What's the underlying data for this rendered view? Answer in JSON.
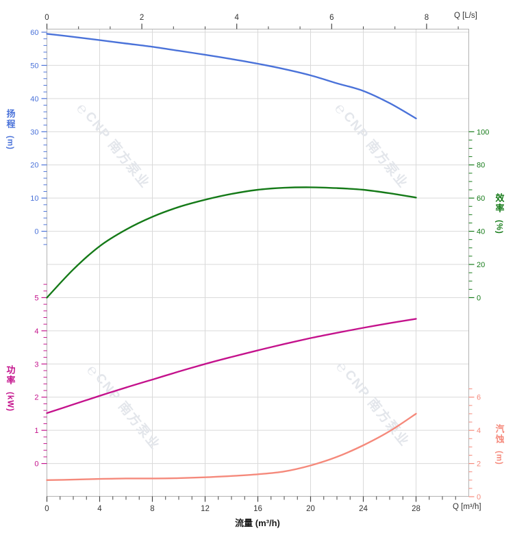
{
  "watermark": {
    "logo": "℮",
    "text": "CNP 南方泵业",
    "color": "#e3e6eb"
  },
  "axes": {
    "top": {
      "title": "Q [L/s]",
      "ticks": [
        0,
        2,
        4,
        6,
        8
      ]
    },
    "bottom": {
      "title": "Q [m³/h]",
      "axis_label": "流量 (m³/h)",
      "ticks": [
        0,
        4,
        8,
        12,
        16,
        20,
        24,
        28
      ]
    },
    "head": {
      "label": "扬程",
      "unit": "(m)",
      "color": "#4a72d9",
      "ticks": [
        60,
        50,
        40,
        30,
        20,
        10,
        0
      ]
    },
    "power": {
      "label": "功率",
      "unit": "(kW)",
      "color": "#c4128c",
      "ticks": [
        5,
        4,
        3,
        2,
        1,
        0
      ]
    },
    "efficiency": {
      "label": "效率",
      "unit": "(%)",
      "color": "#157a18",
      "ticks": [
        100,
        80,
        60,
        40,
        20,
        0
      ]
    },
    "npsh": {
      "label": "汽蚀",
      "unit": "(m)",
      "color": "#f5897b",
      "ticks": [
        6,
        4,
        2,
        0
      ]
    }
  },
  "chart_data": {
    "type": "line",
    "title": "",
    "xlabel": "流量 (m³/h)",
    "x_secondary_label": "Q [L/s]",
    "x": [
      0,
      2,
      4,
      6,
      8,
      10,
      12,
      14,
      16,
      18,
      20,
      22,
      24,
      26,
      28
    ],
    "x_range_m3h": [
      0,
      32
    ],
    "x_range_Ls": [
      0,
      8.9
    ],
    "grid": true,
    "series": [
      {
        "name": "head",
        "label": "扬程",
        "unit": "m",
        "axis": "head",
        "color": "#4a72d9",
        "axis_range": [
          0,
          60
        ],
        "values": [
          59.5,
          58.6,
          57.6,
          56.6,
          55.6,
          54.4,
          53.2,
          51.9,
          50.5,
          48.9,
          47.0,
          44.6,
          42.3,
          38.6,
          34.0
        ]
      },
      {
        "name": "efficiency",
        "label": "效率",
        "unit": "%",
        "axis": "efficiency",
        "color": "#157a18",
        "axis_range": [
          0,
          100
        ],
        "values": [
          0,
          17,
          31,
          41,
          48.7,
          54.6,
          59,
          62.5,
          65,
          66.2,
          66.5,
          66,
          65,
          62.9,
          60.3
        ]
      },
      {
        "name": "power",
        "label": "功率",
        "unit": "kW",
        "axis": "power",
        "color": "#c4128c",
        "axis_range": [
          0,
          5
        ],
        "values": [
          1.52,
          1.78,
          2.04,
          2.29,
          2.53,
          2.77,
          3.0,
          3.21,
          3.41,
          3.6,
          3.78,
          3.94,
          4.09,
          4.23,
          4.36
        ]
      },
      {
        "name": "npsh",
        "label": "汽蚀",
        "unit": "m",
        "axis": "npsh",
        "color": "#f5897b",
        "axis_range": [
          0,
          7
        ],
        "values": [
          1.0,
          1.03,
          1.07,
          1.1,
          1.1,
          1.12,
          1.17,
          1.25,
          1.35,
          1.52,
          1.88,
          2.4,
          3.1,
          3.95,
          5.0
        ]
      }
    ]
  }
}
